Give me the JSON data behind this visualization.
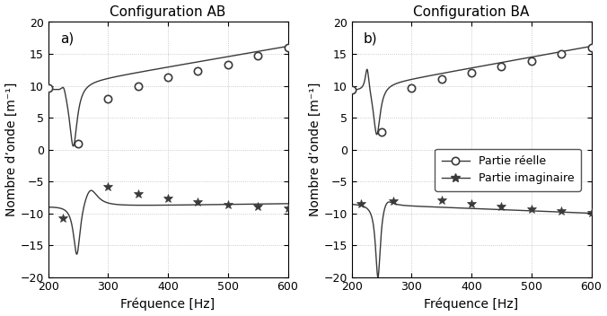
{
  "title_left": "Configuration AB",
  "title_right": "Configuration BA",
  "xlabel": "Fréquence [Hz]",
  "ylabel": "Nombre d’onde [m⁻¹]",
  "xlim": [
    200,
    600
  ],
  "ylim": [
    -20,
    20
  ],
  "yticks": [
    -20,
    -15,
    -10,
    -5,
    0,
    5,
    10,
    15,
    20
  ],
  "xticks": [
    200,
    300,
    400,
    500,
    600
  ],
  "label_real": "Partie réelle",
  "label_imag": "Partie imaginaire",
  "label_a": "a)",
  "label_b": "b)",
  "color": "#3a3a3a",
  "AB_real_markers_x": [
    200,
    250,
    300,
    350,
    400,
    450,
    500,
    550,
    600
  ],
  "AB_real_markers_y": [
    9.7,
    0.9,
    7.9,
    10.0,
    11.3,
    12.3,
    13.3,
    14.7,
    16.0
  ],
  "AB_imag_markers_x": [
    225,
    300,
    350,
    400,
    450,
    500,
    550,
    600
  ],
  "AB_imag_markers_y": [
    -10.8,
    -5.9,
    -7.0,
    -7.7,
    -8.2,
    -8.7,
    -9.0,
    -9.2
  ],
  "BA_real_markers_x": [
    200,
    250,
    300,
    350,
    400,
    450,
    500,
    550,
    600
  ],
  "BA_real_markers_y": [
    9.4,
    2.8,
    9.6,
    11.0,
    12.0,
    13.0,
    13.9,
    15.0,
    16.0
  ],
  "BA_imag_markers_x": [
    215,
    270,
    350,
    400,
    450,
    500,
    550,
    600
  ],
  "BA_imag_markers_y": [
    -8.5,
    -8.1,
    -7.9,
    -8.5,
    -8.9,
    -9.3,
    -9.6,
    -9.9
  ],
  "figsize": [
    6.76,
    3.52
  ],
  "dpi": 100
}
